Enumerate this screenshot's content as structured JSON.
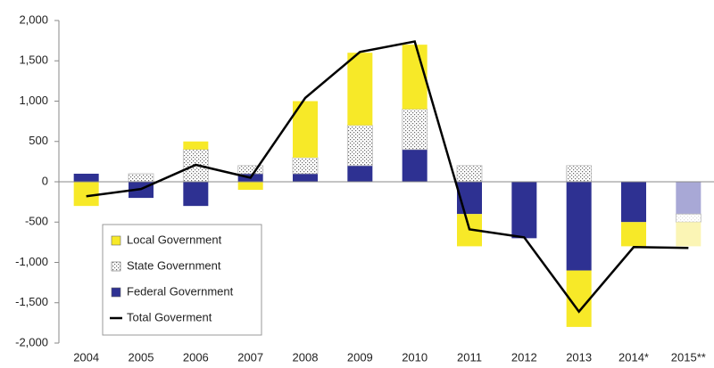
{
  "chart_data": {
    "type": "bar",
    "stacked": true,
    "categories": [
      "2004",
      "2005",
      "2006",
      "2007",
      "2008",
      "2009",
      "2010",
      "2011",
      "2012",
      "2013",
      "2014*",
      "2015**"
    ],
    "series": [
      {
        "name": "Federal Government",
        "type": "bar",
        "pattern": "solid",
        "colors": [
          "#2e3192",
          "#2e3192",
          "#2e3192",
          "#2e3192",
          "#2e3192",
          "#2e3192",
          "#2e3192",
          "#2e3192",
          "#2e3192",
          "#2e3192",
          "#2e3192",
          "#a8a8d6"
        ],
        "values": [
          100,
          -200,
          -300,
          100,
          100,
          200,
          400,
          -400,
          -700,
          -1100,
          -500,
          -400
        ]
      },
      {
        "name": "State Government",
        "type": "bar",
        "pattern": "dots",
        "colors": [
          "#666666",
          "#666666",
          "#666666",
          "#666666",
          "#666666",
          "#666666",
          "#666666",
          "#666666",
          "#666666",
          "#666666",
          "#666666",
          "#dddddd"
        ],
        "values": [
          0,
          100,
          400,
          100,
          200,
          500,
          500,
          200,
          0,
          200,
          0,
          -100
        ]
      },
      {
        "name": "Local Government",
        "type": "bar",
        "pattern": "solid",
        "colors": [
          "#f7e928",
          "#f7e928",
          "#f7e928",
          "#f7e928",
          "#f7e928",
          "#f7e928",
          "#f7e928",
          "#f7e928",
          "#f7e928",
          "#f7e928",
          "#f7e928",
          "#fbf5b5"
        ],
        "values": [
          -300,
          0,
          100,
          -100,
          700,
          900,
          800,
          -400,
          0,
          -700,
          -300,
          -300
        ]
      },
      {
        "name": "Total Goverment",
        "type": "line",
        "color": "#000000",
        "values": [
          -180,
          -90,
          210,
          50,
          1040,
          1610,
          1740,
          -590,
          -690,
          -1610,
          -810,
          -820
        ]
      }
    ],
    "legend_order": [
      2,
      1,
      0,
      3
    ],
    "legend": "lower-left",
    "ylim": [
      -2000,
      2000
    ],
    "yticks": [
      {
        "value": -2000,
        "label": "-2,000"
      },
      {
        "value": -1500,
        "label": "-1,500"
      },
      {
        "value": -1000,
        "label": "-1,000"
      },
      -500,
      0,
      500,
      {
        "value": 1000,
        "label": "1,000"
      },
      {
        "value": 1500,
        "label": "1,500"
      },
      {
        "value": 2000,
        "label": "2,000"
      }
    ]
  }
}
